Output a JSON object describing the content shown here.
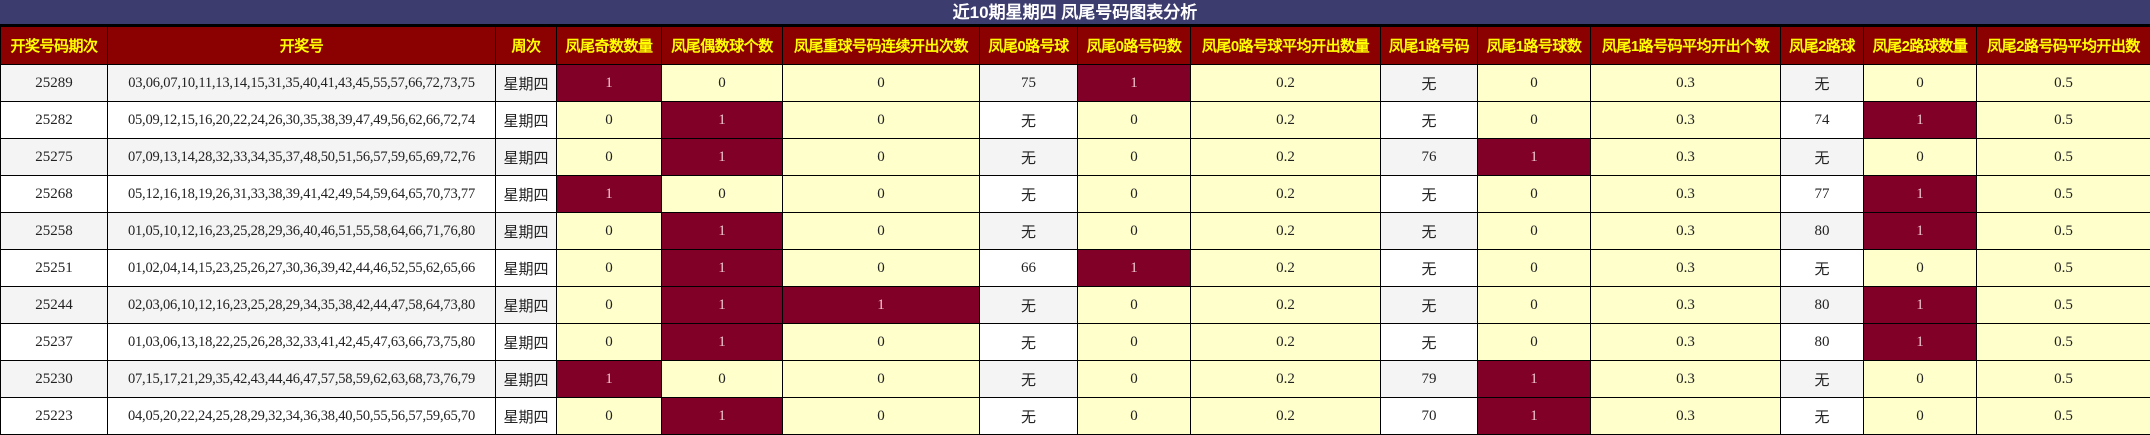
{
  "title": "近10期星期四 凤尾号码图表分析",
  "colors": {
    "title_bg": "#3c3c6e",
    "header_bg": "#8b0000",
    "header_text": "#ffff00",
    "hit_bg": "#800028",
    "zero_bg": "#ffffcc"
  },
  "columns": [
    "开奖号码期次",
    "开奖号",
    "周次",
    "凤尾奇数数量",
    "凤尾偶数球个数",
    "凤尾重球号码连续开出次数",
    "凤尾0路号球",
    "凤尾0路号码数",
    "凤尾0路号球平均开出数量",
    "凤尾1路号码",
    "凤尾1路号球数",
    "凤尾1路号码平均开出个数",
    "凤尾2路球",
    "凤尾2路球数量",
    "凤尾2路号码平均开出数"
  ],
  "rows": [
    [
      "25289",
      "03,06,07,10,11,13,14,15,31,35,40,41,43,45,55,57,66,72,73,75",
      "星期四",
      "1",
      "0",
      "0",
      "75",
      "1",
      "0.2",
      "无",
      "0",
      "0.3",
      "无",
      "0",
      "0.5"
    ],
    [
      "25282",
      "05,09,12,15,16,20,22,24,26,30,35,38,39,47,49,56,62,66,72,74",
      "星期四",
      "0",
      "1",
      "0",
      "无",
      "0",
      "0.2",
      "无",
      "0",
      "0.3",
      "74",
      "1",
      "0.5"
    ],
    [
      "25275",
      "07,09,13,14,28,32,33,34,35,37,48,50,51,56,57,59,65,69,72,76",
      "星期四",
      "0",
      "1",
      "0",
      "无",
      "0",
      "0.2",
      "76",
      "1",
      "0.3",
      "无",
      "0",
      "0.5"
    ],
    [
      "25268",
      "05,12,16,18,19,26,31,33,38,39,41,42,49,54,59,64,65,70,73,77",
      "星期四",
      "1",
      "0",
      "0",
      "无",
      "0",
      "0.2",
      "无",
      "0",
      "0.3",
      "77",
      "1",
      "0.5"
    ],
    [
      "25258",
      "01,05,10,12,16,23,25,28,29,36,40,46,51,55,58,64,66,71,76,80",
      "星期四",
      "0",
      "1",
      "0",
      "无",
      "0",
      "0.2",
      "无",
      "0",
      "0.3",
      "80",
      "1",
      "0.5"
    ],
    [
      "25251",
      "01,02,04,14,15,23,25,26,27,30,36,39,42,44,46,52,55,62,65,66",
      "星期四",
      "0",
      "1",
      "0",
      "66",
      "1",
      "0.2",
      "无",
      "0",
      "0.3",
      "无",
      "0",
      "0.5"
    ],
    [
      "25244",
      "02,03,06,10,12,16,23,25,28,29,34,35,38,42,44,47,58,64,73,80",
      "星期四",
      "0",
      "1",
      "1",
      "无",
      "0",
      "0.2",
      "无",
      "0",
      "0.3",
      "80",
      "1",
      "0.5"
    ],
    [
      "25237",
      "01,03,06,13,18,22,25,26,28,32,33,41,42,45,47,63,66,73,75,80",
      "星期四",
      "0",
      "1",
      "0",
      "无",
      "0",
      "0.2",
      "无",
      "0",
      "0.3",
      "80",
      "1",
      "0.5"
    ],
    [
      "25230",
      "07,15,17,21,29,35,42,43,44,46,47,57,58,59,62,63,68,73,76,79",
      "星期四",
      "1",
      "0",
      "0",
      "无",
      "0",
      "0.2",
      "79",
      "1",
      "0.3",
      "无",
      "0",
      "0.5"
    ],
    [
      "25223",
      "04,05,20,22,24,25,28,29,32,34,36,38,40,50,55,56,57,59,65,70",
      "星期四",
      "0",
      "1",
      "0",
      "无",
      "0",
      "0.2",
      "70",
      "1",
      "0.3",
      "无",
      "0",
      "0.5"
    ]
  ]
}
